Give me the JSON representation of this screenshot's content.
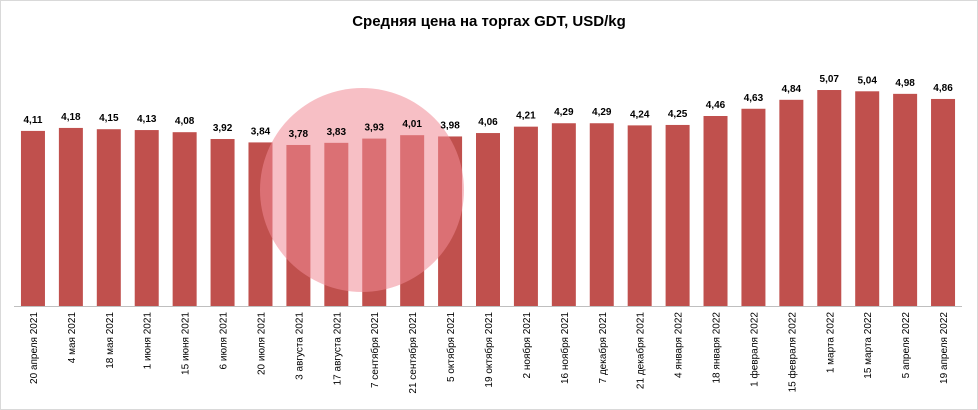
{
  "chart_data": {
    "type": "bar",
    "title": "Средняя цена на торгах GDT, USD/kg",
    "categories": [
      "20 апреля 2021",
      "4 мая 2021",
      "18 мая 2021",
      "1 июня 2021",
      "15 июня 2021",
      "6 июля 2021",
      "20 июля 2021",
      "3 августа 2021",
      "17 августа 2021",
      "7 сентября 2021",
      "21 сентября 2021",
      "5 октября 2021",
      "19 октября 2021",
      "2 ноября 2021",
      "16 ноября 2021",
      "7 декабря 2021",
      "21 декабря 2021",
      "4 января 2022",
      "18 января 2022",
      "1 февраля 2022",
      "15 февраля 2022",
      "1 марта 2022",
      "15 марта 2022",
      "5 апреля 2022",
      "19 апреля 2022"
    ],
    "values": [
      4.11,
      4.18,
      4.15,
      4.13,
      4.08,
      3.92,
      3.84,
      3.78,
      3.83,
      3.93,
      4.01,
      3.98,
      4.06,
      4.21,
      4.29,
      4.29,
      4.24,
      4.25,
      4.46,
      4.63,
      4.84,
      5.07,
      5.04,
      4.98,
      4.86
    ],
    "value_labels": [
      "4,11",
      "4,18",
      "4,15",
      "4,13",
      "4,08",
      "3,92",
      "3,84",
      "3,78",
      "3,83",
      "3,93",
      "4,01",
      "3,98",
      "4,06",
      "4,21",
      "4,29",
      "4,29",
      "4,24",
      "4,25",
      "4,46",
      "4,63",
      "4,84",
      "5,07",
      "5,04",
      "4,98",
      "4,86"
    ],
    "color": "#c0504d"
  }
}
